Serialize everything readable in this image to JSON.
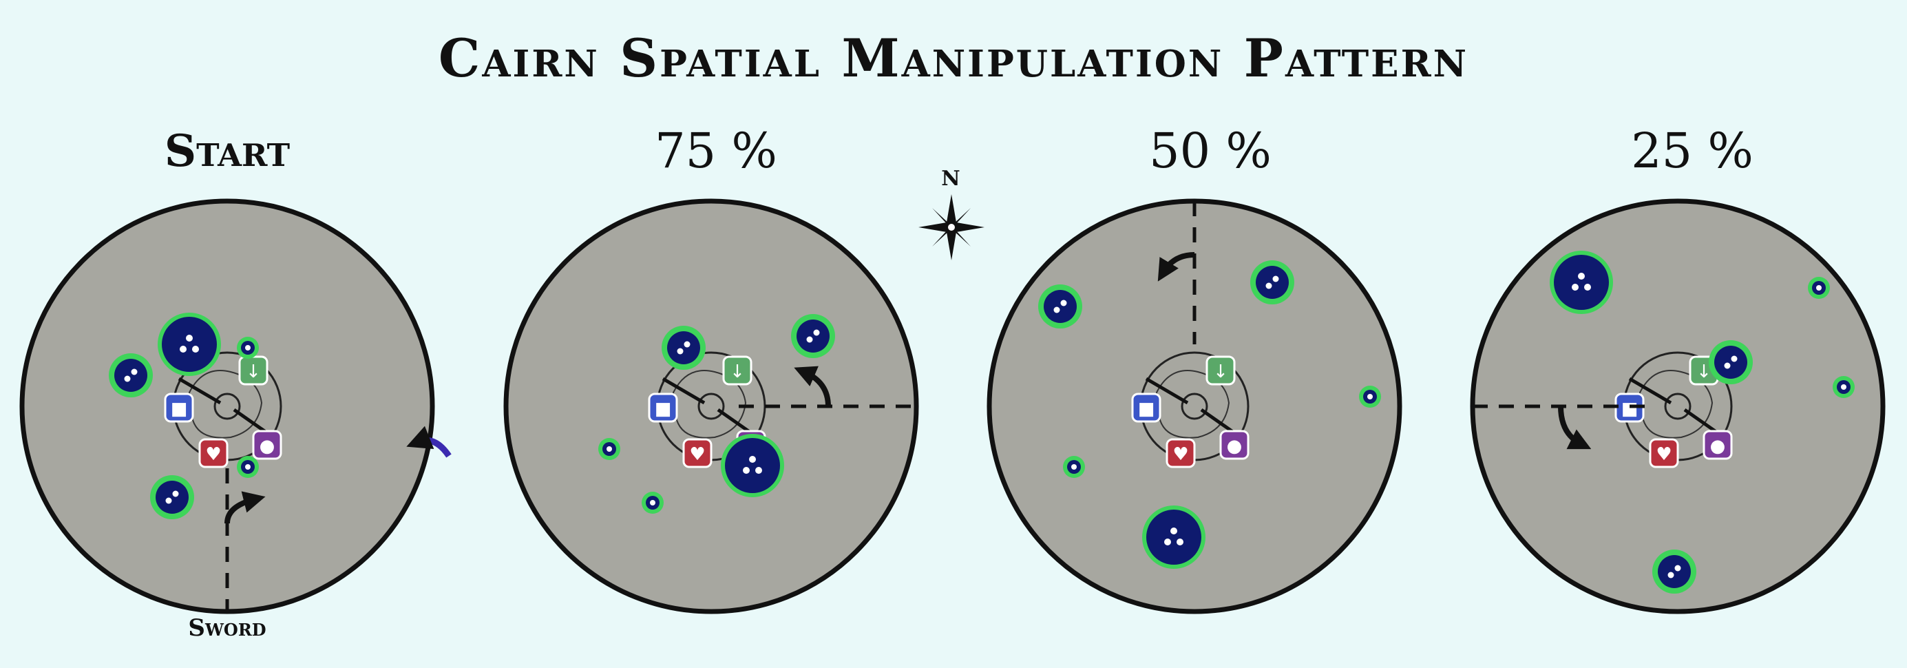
{
  "title": "Cairn Spatial Manipulation Pattern",
  "panels": [
    {
      "label": "Start"
    },
    {
      "label": "75 %"
    },
    {
      "label": "50 %"
    },
    {
      "label": "25 %"
    }
  ],
  "compass": {
    "label": "N"
  },
  "sword_label": "Sword",
  "colors": {
    "background": "#e9f9f9",
    "arena": "#a7a7a0",
    "void": "#0e1a6e",
    "void_ring": "#3ed45a",
    "arrow": "#111111",
    "rotation_arrow": "#3b2bb0"
  },
  "icons": [
    "heart-marker-icon",
    "shield-marker-icon",
    "arrow-marker-icon",
    "orb-marker-icon",
    "compass-rose-icon"
  ]
}
